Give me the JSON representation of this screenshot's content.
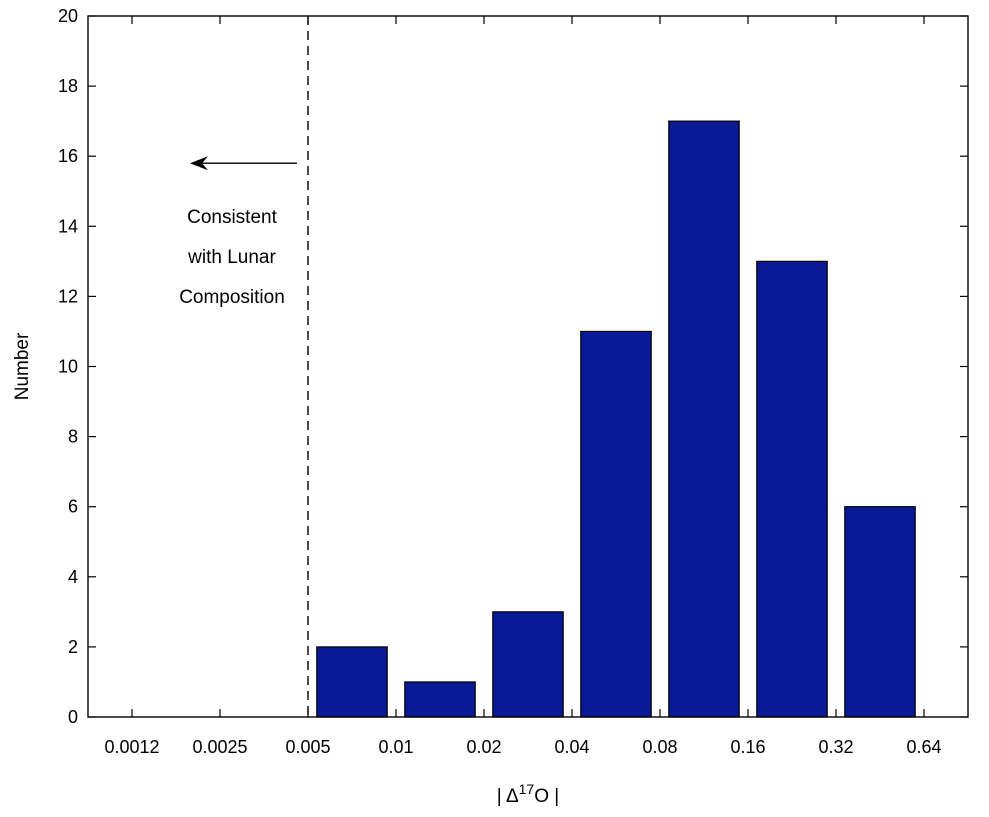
{
  "chart_data": {
    "type": "bar",
    "title": "",
    "xlabel": "| Δ",
    "xlabel_superscript": "17",
    "xlabel_suffix": "O |",
    "ylabel": "Number",
    "ylim": [
      0,
      20
    ],
    "yticks": [
      0,
      2,
      4,
      6,
      8,
      10,
      12,
      14,
      16,
      18,
      20
    ],
    "xscale": "log2",
    "xticks": [
      "0.0012",
      "0.0025",
      "0.005",
      "0.01",
      "0.02",
      "0.04",
      "0.08",
      "0.16",
      "0.32",
      "0.64"
    ],
    "categories": [
      "0.005–0.01",
      "0.01–0.02",
      "0.02–0.04",
      "0.04–0.08",
      "0.08–0.16",
      "0.16–0.32",
      "0.32–0.64"
    ],
    "values": [
      2,
      1,
      3,
      11,
      17,
      13,
      6
    ],
    "bar_color": "#0a1a96",
    "grid": false,
    "threshold": {
      "value": 0.005,
      "style": "dashed"
    },
    "annotation": {
      "lines": [
        "Consistent",
        "with Lunar",
        "Composition"
      ],
      "arrow": "left"
    }
  }
}
